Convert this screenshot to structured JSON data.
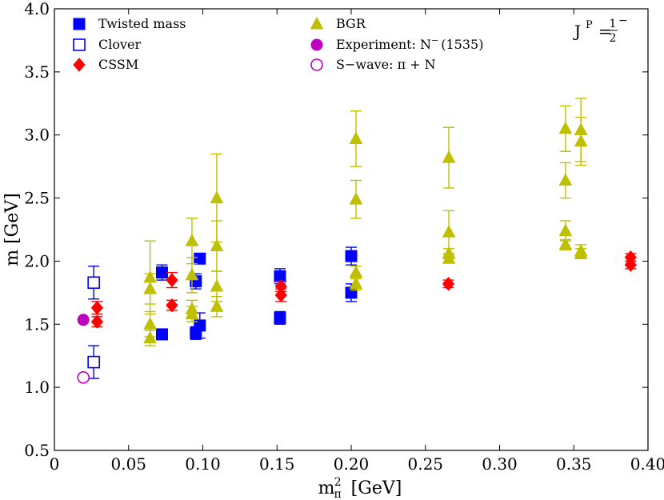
{
  "chart_data": {
    "type": "scatter",
    "title": "",
    "annotation": {
      "base": "J",
      "sup": "P",
      "eq": "=",
      "num": "1",
      "den": "2",
      "sign": "−"
    },
    "xlabel": {
      "base": "m",
      "sup": "2",
      "sub": "π",
      "unit": "[GeV]"
    },
    "ylabel": "m [GeV]",
    "xlim": [
      0,
      0.4
    ],
    "ylim": [
      0.5,
      4.0
    ],
    "xticks": [
      0,
      0.05,
      0.1,
      0.15,
      0.2,
      0.25,
      0.3,
      0.35,
      0.4
    ],
    "xtick_labels": [
      "0",
      "0.05",
      "0.10",
      "0.15",
      "0.20",
      "0.25",
      "0.30",
      "0.35",
      "0.40"
    ],
    "yticks": [
      0.5,
      1.0,
      1.5,
      2.0,
      2.5,
      3.0,
      3.5,
      4.0
    ],
    "ytick_labels": [
      "0.5",
      "1.0",
      "1.5",
      "2.0",
      "2.5",
      "3.0",
      "3.5",
      "4.0"
    ],
    "legend": [
      {
        "label": "Twisted mass",
        "series": "twisted"
      },
      {
        "label": "Clover",
        "series": "clover"
      },
      {
        "label": "CSSM",
        "series": "cssm"
      },
      {
        "label": "BGR",
        "series": "bgr"
      },
      {
        "label": "Experiment: N",
        "sup": "−",
        "tail": "(1535)",
        "series": "experiment"
      },
      {
        "label": "S−wave: π + N",
        "series": "swave"
      }
    ],
    "series": [
      {
        "key": "twisted",
        "name": "Twisted mass",
        "marker": "square-filled",
        "color": "#0000ff",
        "points": [
          {
            "x": 0.0725,
            "y": 1.91,
            "err": 0.06
          },
          {
            "x": 0.0725,
            "y": 1.42,
            "err": 0.03
          },
          {
            "x": 0.0953,
            "y": 1.84,
            "err": 0.06
          },
          {
            "x": 0.0953,
            "y": 1.43,
            "err": 0.05
          },
          {
            "x": 0.098,
            "y": 2.02,
            "err": 0.03
          },
          {
            "x": 0.098,
            "y": 1.49,
            "err": 0.1
          },
          {
            "x": 0.152,
            "y": 1.88,
            "err": 0.06
          },
          {
            "x": 0.152,
            "y": 1.55,
            "err": 0.05
          },
          {
            "x": 0.2,
            "y": 2.04,
            "err": 0.07
          },
          {
            "x": 0.2,
            "y": 1.75,
            "err": 0.07
          }
        ]
      },
      {
        "key": "clover",
        "name": "Clover",
        "marker": "square-open",
        "color": "#0000ff",
        "points": [
          {
            "x": 0.0265,
            "y": 1.83,
            "err": 0.13
          },
          {
            "x": 0.0265,
            "y": 1.2,
            "err": 0.13
          }
        ]
      },
      {
        "key": "cssm",
        "name": "CSSM",
        "marker": "diamond-filled",
        "color": "#ff0000",
        "points": [
          {
            "x": 0.0288,
            "y": 1.63,
            "err": 0.05
          },
          {
            "x": 0.0288,
            "y": 1.52,
            "err": 0.04
          },
          {
            "x": 0.0792,
            "y": 1.85,
            "err": 0.06
          },
          {
            "x": 0.0792,
            "y": 1.65,
            "err": 0.04
          },
          {
            "x": 0.1527,
            "y": 1.8,
            "err": 0.04
          },
          {
            "x": 0.1527,
            "y": 1.73,
            "err": 0.05
          },
          {
            "x": 0.2655,
            "y": 1.82,
            "err": 0.03
          },
          {
            "x": 0.3883,
            "y": 2.03,
            "err": 0.03
          },
          {
            "x": 0.3883,
            "y": 1.97,
            "err": 0.03
          }
        ]
      },
      {
        "key": "bgr",
        "name": "BGR",
        "marker": "triangle-filled",
        "color": "#bfbf00",
        "points": [
          {
            "x": 0.0645,
            "y": 1.87,
            "err": 0.29
          },
          {
            "x": 0.0645,
            "y": 1.78,
            "err": 0.12
          },
          {
            "x": 0.0645,
            "y": 1.5,
            "err": 0.1
          },
          {
            "x": 0.0645,
            "y": 1.39,
            "err": 0.06
          },
          {
            "x": 0.0927,
            "y": 2.16,
            "err": 0.18
          },
          {
            "x": 0.0927,
            "y": 1.89,
            "err": 0.14
          },
          {
            "x": 0.0927,
            "y": 1.62,
            "err": 0.07
          },
          {
            "x": 0.0927,
            "y": 1.58,
            "err": 0.06
          },
          {
            "x": 0.1094,
            "y": 2.5,
            "err": 0.35
          },
          {
            "x": 0.1094,
            "y": 2.12,
            "err": 0.2
          },
          {
            "x": 0.1094,
            "y": 1.8,
            "err": 0.12
          },
          {
            "x": 0.1094,
            "y": 1.64,
            "err": 0.08
          },
          {
            "x": 0.2032,
            "y": 2.97,
            "err": 0.22
          },
          {
            "x": 0.2032,
            "y": 2.49,
            "err": 0.15
          },
          {
            "x": 0.2032,
            "y": 1.91,
            "err": 0.05
          },
          {
            "x": 0.2032,
            "y": 1.82,
            "err": 0.05
          },
          {
            "x": 0.2658,
            "y": 2.82,
            "err": 0.24
          },
          {
            "x": 0.2658,
            "y": 2.23,
            "err": 0.17
          },
          {
            "x": 0.2658,
            "y": 2.06,
            "err": 0.04
          },
          {
            "x": 0.2658,
            "y": 2.02,
            "err": 0.03
          },
          {
            "x": 0.3444,
            "y": 3.05,
            "err": 0.18
          },
          {
            "x": 0.3444,
            "y": 2.64,
            "err": 0.14
          },
          {
            "x": 0.3444,
            "y": 2.24,
            "err": 0.08
          },
          {
            "x": 0.3444,
            "y": 2.13,
            "err": 0.04
          },
          {
            "x": 0.3548,
            "y": 3.04,
            "err": 0.25
          },
          {
            "x": 0.3548,
            "y": 2.95,
            "err": 0.19
          },
          {
            "x": 0.3548,
            "y": 2.08,
            "err": 0.05
          },
          {
            "x": 0.3548,
            "y": 2.06,
            "err": 0.04
          }
        ]
      },
      {
        "key": "experiment",
        "name": "Experiment: N−(1535)",
        "marker": "circle-filled",
        "color": "#bf00bf",
        "points": [
          {
            "x": 0.0195,
            "y": 1.535,
            "err": 0
          }
        ]
      },
      {
        "key": "swave",
        "name": "S−wave: π + N",
        "marker": "circle-open",
        "color": "#bf00bf",
        "points": [
          {
            "x": 0.0195,
            "y": 1.078,
            "err": 0
          }
        ]
      }
    ]
  }
}
